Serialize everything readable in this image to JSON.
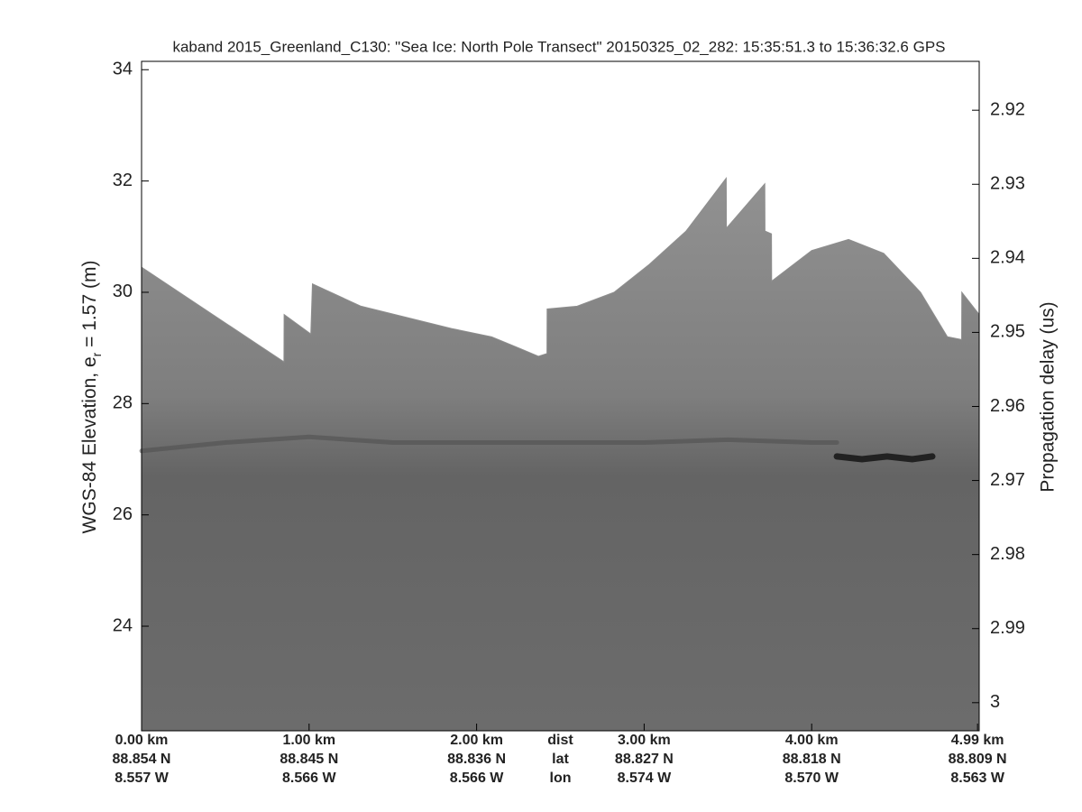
{
  "chart_data": {
    "type": "echogram",
    "title": "kaband 2015_Greenland_C130: \"Sea Ice: North Pole Transect\"  20150325_02_282: 15:35:51.3 to 15:36:32.6 GPS",
    "ylabel": {
      "text": "WGS-84 Elevation, e",
      "subscript": "r",
      "rest": " = 1.57 (m)"
    },
    "y2label": "Propagation delay (us)",
    "xlim": [
      0,
      5.0
    ],
    "ylim": [
      22.12,
      34.15
    ],
    "yticks": [
      24,
      26,
      28,
      30,
      32,
      34
    ],
    "y2lim": [
      3.0038,
      2.9134
    ],
    "y2ticks": [
      2.92,
      2.93,
      2.94,
      2.95,
      2.96,
      2.97,
      2.98,
      2.99,
      3
    ],
    "xticks": [
      {
        "value": 0,
        "label": "0.00 km"
      },
      {
        "value": 1.0,
        "label": "1.00 km"
      },
      {
        "value": 2.0,
        "label": "2.00 km"
      },
      {
        "value": 3.0,
        "label": "3.00 km"
      },
      {
        "value": 4.0,
        "label": "4.00 km"
      },
      {
        "value": 4.99,
        "label": "4.99 km"
      }
    ],
    "xtick_lat": [
      "88.854 N",
      "88.845 N",
      "88.836 N",
      "88.827 N",
      "88.818 N",
      "88.809 N"
    ],
    "xtick_lon": [
      "8.557 W",
      "8.566 W",
      "8.566 W",
      "8.574 W",
      "8.570 W",
      "8.563 W"
    ],
    "xrow_labels": [
      "dist",
      "lat",
      "lon"
    ],
    "xrow_labels_at": 2.5,
    "series": [
      {
        "color": "#8e8e8e",
        "x": [
          0,
          0.85,
          0.851,
          1.01,
          1.02,
          1.31,
          1.58,
          1.85,
          2.09,
          2.25,
          2.37,
          2.42,
          2.421,
          2.6,
          2.82,
          3.03,
          3.25,
          3.49,
          3.491,
          3.72,
          3.721,
          3.76,
          3.761,
          4.0,
          4.22,
          4.43,
          4.65,
          4.81,
          4.895,
          4.896,
          5.0
        ],
        "values": [
          30.45,
          28.75,
          29.6,
          29.25,
          30.15,
          29.75,
          29.55,
          29.35,
          29.2,
          29.0,
          28.85,
          28.9,
          29.7,
          29.75,
          30.0,
          30.5,
          31.1,
          32.05,
          31.15,
          31.95,
          31.1,
          31.05,
          30.2,
          30.75,
          30.95,
          30.7,
          30.0,
          29.2,
          29.15,
          30.0,
          29.6
        ]
      },
      {
        "color": "#4a4a4a",
        "x": [
          0,
          0.5,
          1.0,
          1.5,
          2.0,
          2.5,
          3.0,
          3.5,
          4.0,
          4.15
        ],
        "values": [
          27.15,
          27.3,
          27.4,
          27.3,
          27.3,
          27.3,
          27.3,
          27.35,
          27.3,
          27.3
        ]
      },
      {
        "color": "#1a1a1a",
        "x": [
          4.15,
          4.3,
          4.45,
          4.6,
          4.72
        ],
        "values": [
          27.05,
          27.0,
          27.05,
          27.0,
          27.05
        ]
      }
    ]
  }
}
